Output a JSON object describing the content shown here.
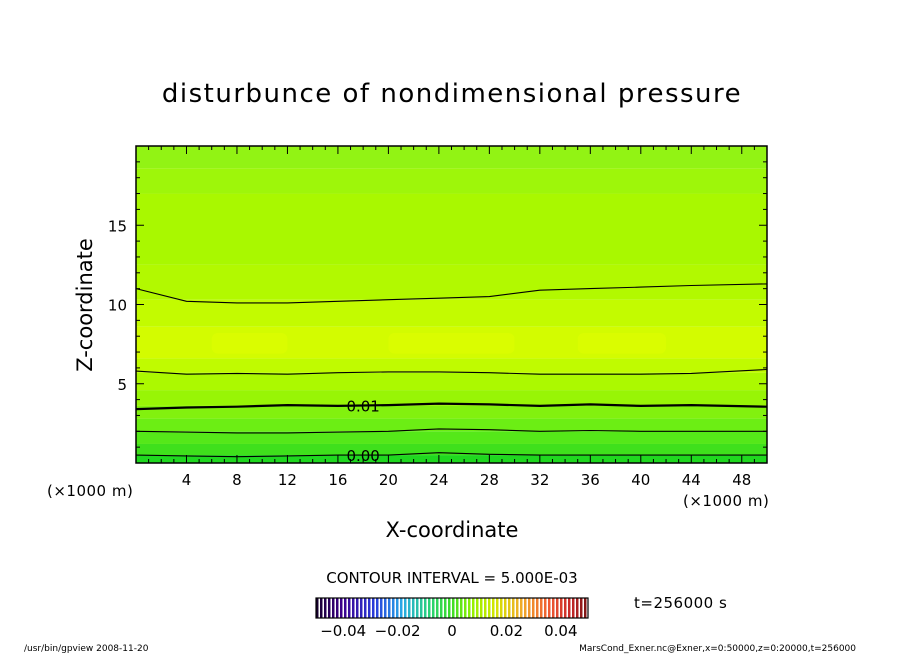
{
  "chart_data": {
    "type": "heatmap",
    "title": "disturbunce of nondimensional pressure",
    "xlabel": "X-coordinate",
    "ylabel": "Z-coordinate",
    "x_unit": "(×1000 m)",
    "y_unit": "(×1000 m)",
    "xlim": [
      0,
      50
    ],
    "ylim": [
      0,
      20
    ],
    "x_ticks": [
      4,
      8,
      12,
      16,
      20,
      24,
      28,
      32,
      36,
      40,
      44,
      48
    ],
    "y_ticks": [
      5,
      10,
      15
    ],
    "contour_interval_text": "CONTOUR INTERVAL = 5.000E-03",
    "time_label": "t=256000 s",
    "colorbar": {
      "range": [
        -0.05,
        0.05
      ],
      "tick_values": [
        -0.04,
        -0.02,
        0,
        0.02,
        0.04
      ],
      "tick_labels": [
        "−0.04",
        "−0.02",
        "0",
        "0.02",
        "0.04"
      ]
    },
    "contours": [
      {
        "level": 0.0,
        "label": "0.00",
        "z": [
          0.5,
          0.45,
          0.4,
          0.45,
          0.5,
          0.5,
          0.65,
          0.55,
          0.5,
          0.5,
          0.5,
          0.5,
          0.5
        ]
      },
      {
        "level": 0.005,
        "label": "",
        "z": [
          2.0,
          1.95,
          1.9,
          1.9,
          1.95,
          2.0,
          2.15,
          2.1,
          2.0,
          2.05,
          2.0,
          2.0,
          2.0
        ]
      },
      {
        "level": 0.01,
        "label": "0.01",
        "z": [
          3.4,
          3.5,
          3.55,
          3.65,
          3.6,
          3.65,
          3.75,
          3.7,
          3.6,
          3.7,
          3.6,
          3.65,
          3.55
        ]
      },
      {
        "level": 0.015,
        "label": "",
        "z": [
          5.8,
          5.6,
          5.65,
          5.6,
          5.7,
          5.75,
          5.75,
          5.7,
          5.6,
          5.6,
          5.6,
          5.65,
          5.9
        ]
      },
      {
        "level": 0.01,
        "label": "",
        "z": [
          11.0,
          10.2,
          10.1,
          10.1,
          10.2,
          10.3,
          10.4,
          10.5,
          10.9,
          11.0,
          11.1,
          11.2,
          11.3
        ]
      }
    ],
    "contour_x": [
      0,
      4,
      8,
      12,
      16,
      20,
      24,
      28,
      32,
      36,
      40,
      44,
      50
    ],
    "fill_bands": [
      {
        "z0": 0,
        "z1": 0.5,
        "color": "#1fd81f"
      },
      {
        "z0": 0.5,
        "z1": 1.2,
        "color": "#3fe01c"
      },
      {
        "z0": 1.2,
        "z1": 2.0,
        "color": "#55e819"
      },
      {
        "z0": 2.0,
        "z1": 2.8,
        "color": "#6cee14"
      },
      {
        "z0": 2.8,
        "z1": 3.6,
        "color": "#82f10e"
      },
      {
        "z0": 3.6,
        "z1": 4.6,
        "color": "#98f506"
      },
      {
        "z0": 4.6,
        "z1": 5.7,
        "color": "#acf900"
      },
      {
        "z0": 5.7,
        "z1": 6.6,
        "color": "#c0fb00"
      },
      {
        "z0": 6.6,
        "z1": 8.6,
        "color": "#d3fc00"
      },
      {
        "z0": 8.6,
        "z1": 10.3,
        "color": "#c3fb00"
      },
      {
        "z0": 10.3,
        "z1": 12.5,
        "color": "#b2f900"
      },
      {
        "z0": 12.5,
        "z1": 17.0,
        "color": "#a9f800"
      },
      {
        "z0": 17.0,
        "z1": 18.6,
        "color": "#9ef60a"
      },
      {
        "z0": 18.6,
        "z1": 20.0,
        "color": "#92f314"
      }
    ],
    "colors": {
      "frame": "#000000",
      "background": "#ffffff"
    }
  },
  "footer": {
    "left": "/usr/bin/gpview   2008-11-20",
    "right": "MarsCond_Exner.nc@Exner,x=0:50000,z=0:20000,t=256000"
  }
}
